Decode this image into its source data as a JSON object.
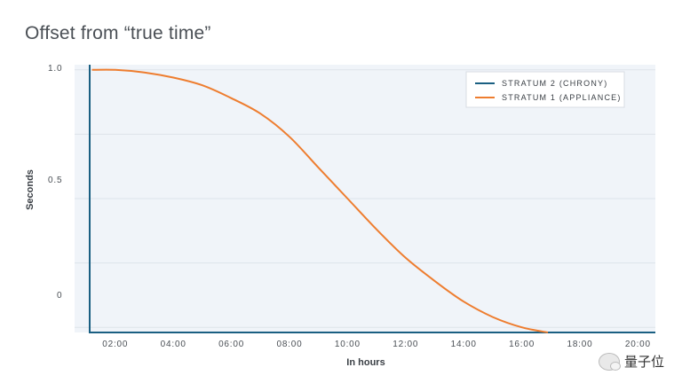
{
  "chart_data": {
    "type": "line",
    "title": "Offset from “true time”",
    "xlabel": "In hours",
    "ylabel": "Seconds",
    "x_ticks": [
      "02:00",
      "04:00",
      "06:00",
      "08:00",
      "10:00",
      "12:00",
      "14:00",
      "16:00",
      "18:00",
      "20:00"
    ],
    "x_range_hours": [
      0.6,
      20.6
    ],
    "y_ticks": [
      "1.0",
      "0.5",
      "0"
    ],
    "ylim": [
      -0.02,
      1.02
    ],
    "grid": true,
    "legend_position": "top-right",
    "series": [
      {
        "name": "STRATUM 2 (CHRONY)",
        "color": "#1a5f82",
        "x": [
          1.12,
          1.12,
          1.16,
          20.6
        ],
        "y": [
          1.02,
          -0.02,
          -0.02,
          -0.02
        ]
      },
      {
        "name": "STRATUM 1 (APPLIANCE)",
        "color": "#ee7d2f",
        "x": [
          1.2,
          2.0,
          3.0,
          4.0,
          5.0,
          6.0,
          7.0,
          8.0,
          9.0,
          10.0,
          11.0,
          12.0,
          13.0,
          14.0,
          15.0,
          16.0,
          16.9
        ],
        "y": [
          1.0,
          1.0,
          0.99,
          0.97,
          0.94,
          0.89,
          0.83,
          0.74,
          0.62,
          0.5,
          0.38,
          0.27,
          0.18,
          0.1,
          0.04,
          0.0,
          -0.02
        ]
      }
    ]
  },
  "watermark": {
    "text": "量子位",
    "icon": "wechat-icon"
  }
}
